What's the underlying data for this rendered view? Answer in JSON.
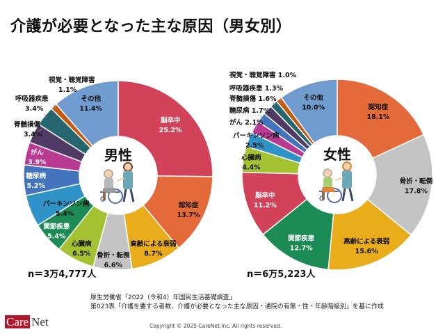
{
  "header": {
    "title": "介護が必要となった主な原因（男女別）"
  },
  "chart_data": [
    {
      "type": "pie",
      "variant": "donut",
      "title": "男性",
      "sample_size_label": "n＝3万4,777人",
      "unit": "%",
      "start": "12 o'clock, clockwise",
      "categories": [
        "脳卒中",
        "認知症",
        "高齢による衰弱",
        "骨折・転倒",
        "心臓病",
        "関節疾患",
        "パーキンソン病",
        "糖尿病",
        "がん",
        "脊髄損傷",
        "呼吸器疾患",
        "視覚・聴覚障害",
        "その他"
      ],
      "values": [
        25.2,
        13.7,
        8.7,
        6.6,
        6.5,
        5.4,
        5.4,
        5.2,
        3.9,
        3.4,
        3.4,
        1.1,
        11.4
      ],
      "value_labels": [
        "25.2%",
        "13.7%",
        "8.7%",
        "6.6%",
        "6.5%",
        "5.4%",
        "5.4%",
        "5.2%",
        "3.9%",
        "3.4%",
        "3.4%",
        "1.1%",
        "11.4%"
      ]
    },
    {
      "type": "pie",
      "variant": "donut",
      "title": "女性",
      "sample_size_label": "n＝6万5,223人",
      "unit": "%",
      "start": "12 o'clock, clockwise",
      "categories": [
        "認知症",
        "骨折・転倒",
        "高齢による衰弱",
        "関節疾患",
        "脳卒中",
        "心臓病",
        "パーキンソン病",
        "がん",
        "糖尿病",
        "脊髄損傷",
        "呼吸器疾患",
        "視覚・聴覚障害",
        "その他"
      ],
      "values": [
        18.1,
        17.8,
        15.6,
        12.7,
        11.2,
        4.4,
        2.5,
        2.1,
        1.7,
        1.6,
        1.3,
        1.0,
        10.0
      ],
      "value_labels": [
        "18.1%",
        "17.8%",
        "15.6%",
        "12.7%",
        "11.2%",
        "4.4%",
        "2.5%",
        "2.1%",
        "1.7%",
        "1.6%",
        "1.3%",
        "1.0%",
        "10.0%"
      ]
    }
  ],
  "category_colors": {
    "脳卒中": "#d2435a",
    "認知症": "#e46a3a",
    "高齢による衰弱": "#e9ac1b",
    "骨折・転倒": "#c4c4c4",
    "心臓病": "#a4c232",
    "関節疾患": "#1c8a55",
    "パーキンソン病": "#2f93c8",
    "糖尿病": "#4474bd",
    "がん": "#b93a93",
    "脊髄損傷": "#4e3a64",
    "呼吸器疾患": "#26666f",
    "視覚・聴覚障害": "#c5590d",
    "その他": "#6f9bcf"
  },
  "center_icons": {
    "male": "caregiver-pushing-elderly-man-wheelchair-icon",
    "female": "caregiver-pushing-elderly-woman-wheelchair-icon"
  },
  "source": {
    "line1": "厚生労働省「2022（令和4）年国民生活基礎調査」",
    "line2": "第023表「介護を要する者数、介護が必要となった主な原因・通院の有無・性・年齢階級別」を基に作成"
  },
  "footer": {
    "logo_care": "Care",
    "logo_net": "Net",
    "copyright": "Copyright © 2025 CareNet,Inc. All rights reserved."
  }
}
